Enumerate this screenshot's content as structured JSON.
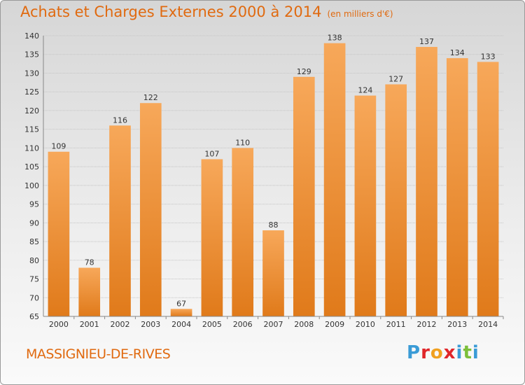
{
  "header": {
    "title": "Achats et Charges Externes 2000 à 2014",
    "subtitle": "(en milliers d'€)"
  },
  "footer": {
    "place": "MASSIGNIEU-DE-RIVES",
    "logo_letters": [
      "P",
      "r",
      "o",
      "x",
      "i",
      "t",
      "i"
    ],
    "logo_colors": [
      "#3a9bd6",
      "#e0262a",
      "#f0a020",
      "#e0262a",
      "#3a9bd6",
      "#7cbf3a",
      "#3a9bd6"
    ]
  },
  "chart_data": {
    "type": "bar",
    "categories": [
      "2000",
      "2001",
      "2002",
      "2003",
      "2004",
      "2005",
      "2006",
      "2007",
      "2008",
      "2009",
      "2010",
      "2011",
      "2012",
      "2013",
      "2014"
    ],
    "values": [
      109,
      78,
      116,
      122,
      67,
      107,
      110,
      88,
      129,
      138,
      124,
      127,
      137,
      134,
      133
    ],
    "title": "Achats et Charges Externes 2000 à 2014",
    "subtitle": "(en milliers d'€)",
    "xlabel": "",
    "ylabel": "",
    "ylim": [
      65,
      140
    ],
    "yticks": [
      65,
      70,
      75,
      80,
      85,
      90,
      95,
      100,
      105,
      110,
      115,
      120,
      125,
      130,
      135,
      140
    ],
    "grid": true,
    "bar_color_top": "#f7a85a",
    "bar_color_bottom": "#e07a1a"
  }
}
